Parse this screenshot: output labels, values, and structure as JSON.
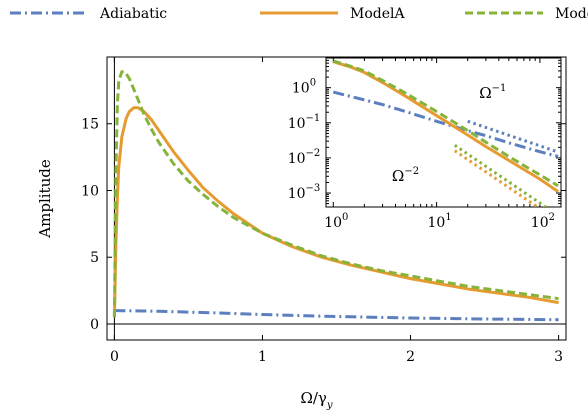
{
  "chart_data": {
    "type": "line",
    "legend": {
      "placement": "top",
      "entries": [
        {
          "label": "Adiabatic",
          "color": "#5b7fbf",
          "style": "dash-dot"
        },
        {
          "label": "ModelA",
          "color": "#e59b2f",
          "style": "solid"
        },
        {
          "label": "ModelB",
          "color": "#86b33a",
          "style": "dashed"
        }
      ]
    },
    "main": {
      "xlabel": "Ω/γ",
      "xlabel_sub": "y",
      "ylabel": "Amplitude",
      "xlim": [
        -0.05,
        3.05
      ],
      "ylim": [
        -1.2,
        20
      ],
      "xticks": [
        0,
        1,
        2,
        3
      ],
      "xtick_labels": [
        "0",
        "1",
        "2",
        "3"
      ],
      "yticks": [
        0,
        5,
        10,
        15
      ],
      "ytick_labels": [
        "0",
        "5",
        "10",
        "15"
      ],
      "zero_lines": {
        "x": 0,
        "y": 0
      },
      "series": [
        {
          "name": "Adiabatic",
          "color": "#5b7fbf",
          "style": "dash-dot",
          "x": [
            0.0,
            0.02,
            0.05,
            0.1,
            0.2,
            0.3,
            0.5,
            0.7,
            1.0,
            1.3,
            1.5,
            1.8,
            2.0,
            2.3,
            2.5,
            2.8,
            3.0
          ],
          "y": [
            1.0,
            1.0,
            0.99,
            0.99,
            0.97,
            0.95,
            0.89,
            0.82,
            0.71,
            0.61,
            0.56,
            0.49,
            0.45,
            0.4,
            0.37,
            0.34,
            0.32
          ]
        },
        {
          "name": "ModelA",
          "color": "#e59b2f",
          "style": "solid",
          "x": [
            0.0,
            0.005,
            0.01,
            0.02,
            0.03,
            0.05,
            0.08,
            0.1,
            0.13,
            0.16,
            0.2,
            0.25,
            0.3,
            0.4,
            0.5,
            0.6,
            0.7,
            0.8,
            1.0,
            1.2,
            1.4,
            1.6,
            1.8,
            2.0,
            2.2,
            2.4,
            2.6,
            2.8,
            3.0
          ],
          "y": [
            0.5,
            3.0,
            6.0,
            9.5,
            11.8,
            14.0,
            15.4,
            15.9,
            16.2,
            16.2,
            15.9,
            15.3,
            14.5,
            12.9,
            11.5,
            10.2,
            9.2,
            8.3,
            6.8,
            5.8,
            5.0,
            4.4,
            3.9,
            3.4,
            3.0,
            2.6,
            2.3,
            2.0,
            1.6
          ]
        },
        {
          "name": "ModelB",
          "color": "#86b33a",
          "style": "dashed",
          "x": [
            0.0,
            0.005,
            0.01,
            0.02,
            0.03,
            0.05,
            0.07,
            0.1,
            0.13,
            0.16,
            0.2,
            0.25,
            0.3,
            0.4,
            0.5,
            0.6,
            0.7,
            0.8,
            1.0,
            1.2,
            1.4,
            1.6,
            1.8,
            2.0,
            2.2,
            2.4,
            2.6,
            2.8,
            3.0
          ],
          "y": [
            0.5,
            6.0,
            11.5,
            16.5,
            18.2,
            18.9,
            18.9,
            18.4,
            17.6,
            16.8,
            15.7,
            14.6,
            13.6,
            12.0,
            10.7,
            9.7,
            8.8,
            8.0,
            6.8,
            5.9,
            5.1,
            4.5,
            4.0,
            3.6,
            3.2,
            2.8,
            2.5,
            2.2,
            1.9
          ]
        }
      ]
    },
    "inset": {
      "xscale": "log",
      "yscale": "log",
      "xlim": [
        0.85,
        160
      ],
      "ylim": [
        0.0004,
        7
      ],
      "xticks": [
        1,
        10,
        100
      ],
      "xtick_base": "10",
      "xtick_exponents": [
        "0",
        "1",
        "2"
      ],
      "yticks": [
        0.001,
        0.01,
        0.1,
        1
      ],
      "ytick_base": "10",
      "ytick_exponents": [
        "−3",
        "−2",
        "−1",
        "0"
      ],
      "annotations": [
        {
          "base": "Ω",
          "exponent": "−1",
          "x": 35,
          "y": 0.5
        },
        {
          "base": "Ω",
          "exponent": "−2",
          "x": 5,
          "y": 0.0022
        }
      ],
      "series": [
        {
          "name": "Adiabatic",
          "color": "#5b7fbf",
          "style": "dash-dot",
          "x": [
            1,
            2,
            3,
            5,
            10,
            20,
            30,
            50,
            80,
            100,
            150
          ],
          "y": [
            0.75,
            0.45,
            0.33,
            0.21,
            0.11,
            0.06,
            0.043,
            0.027,
            0.018,
            0.015,
            0.011
          ]
        },
        {
          "name": "ModelA",
          "color": "#e59b2f",
          "style": "solid",
          "x": [
            1,
            1.5,
            2,
            3,
            5,
            10,
            20,
            30,
            50,
            80,
            100,
            150
          ],
          "y": [
            5.5,
            3.8,
            2.7,
            1.4,
            0.57,
            0.16,
            0.045,
            0.021,
            0.0085,
            0.0037,
            0.0025,
            0.0011
          ]
        },
        {
          "name": "ModelB",
          "color": "#86b33a",
          "style": "dashed",
          "x": [
            1,
            1.5,
            2,
            3,
            5,
            10,
            20,
            30,
            50,
            80,
            100,
            150
          ],
          "y": [
            5.8,
            4.0,
            3.0,
            1.6,
            0.7,
            0.21,
            0.06,
            0.028,
            0.011,
            0.0048,
            0.0033,
            0.0016
          ]
        },
        {
          "name": "Ω⁻¹ asymptote",
          "color": "#5b7fbf",
          "style": "dotted",
          "x": [
            20,
            150
          ],
          "y": [
            0.11,
            0.0147
          ]
        },
        {
          "name": "Ω⁻² asymptote",
          "color": "#e59b2f",
          "style": "dotted",
          "x": [
            15,
            150
          ],
          "y": [
            0.016,
            0.00016
          ]
        },
        {
          "name": "Ω⁻² asymptote B",
          "color": "#86b33a",
          "style": "dotted",
          "x": [
            15,
            150
          ],
          "y": [
            0.023,
            0.00023
          ]
        }
      ]
    }
  }
}
